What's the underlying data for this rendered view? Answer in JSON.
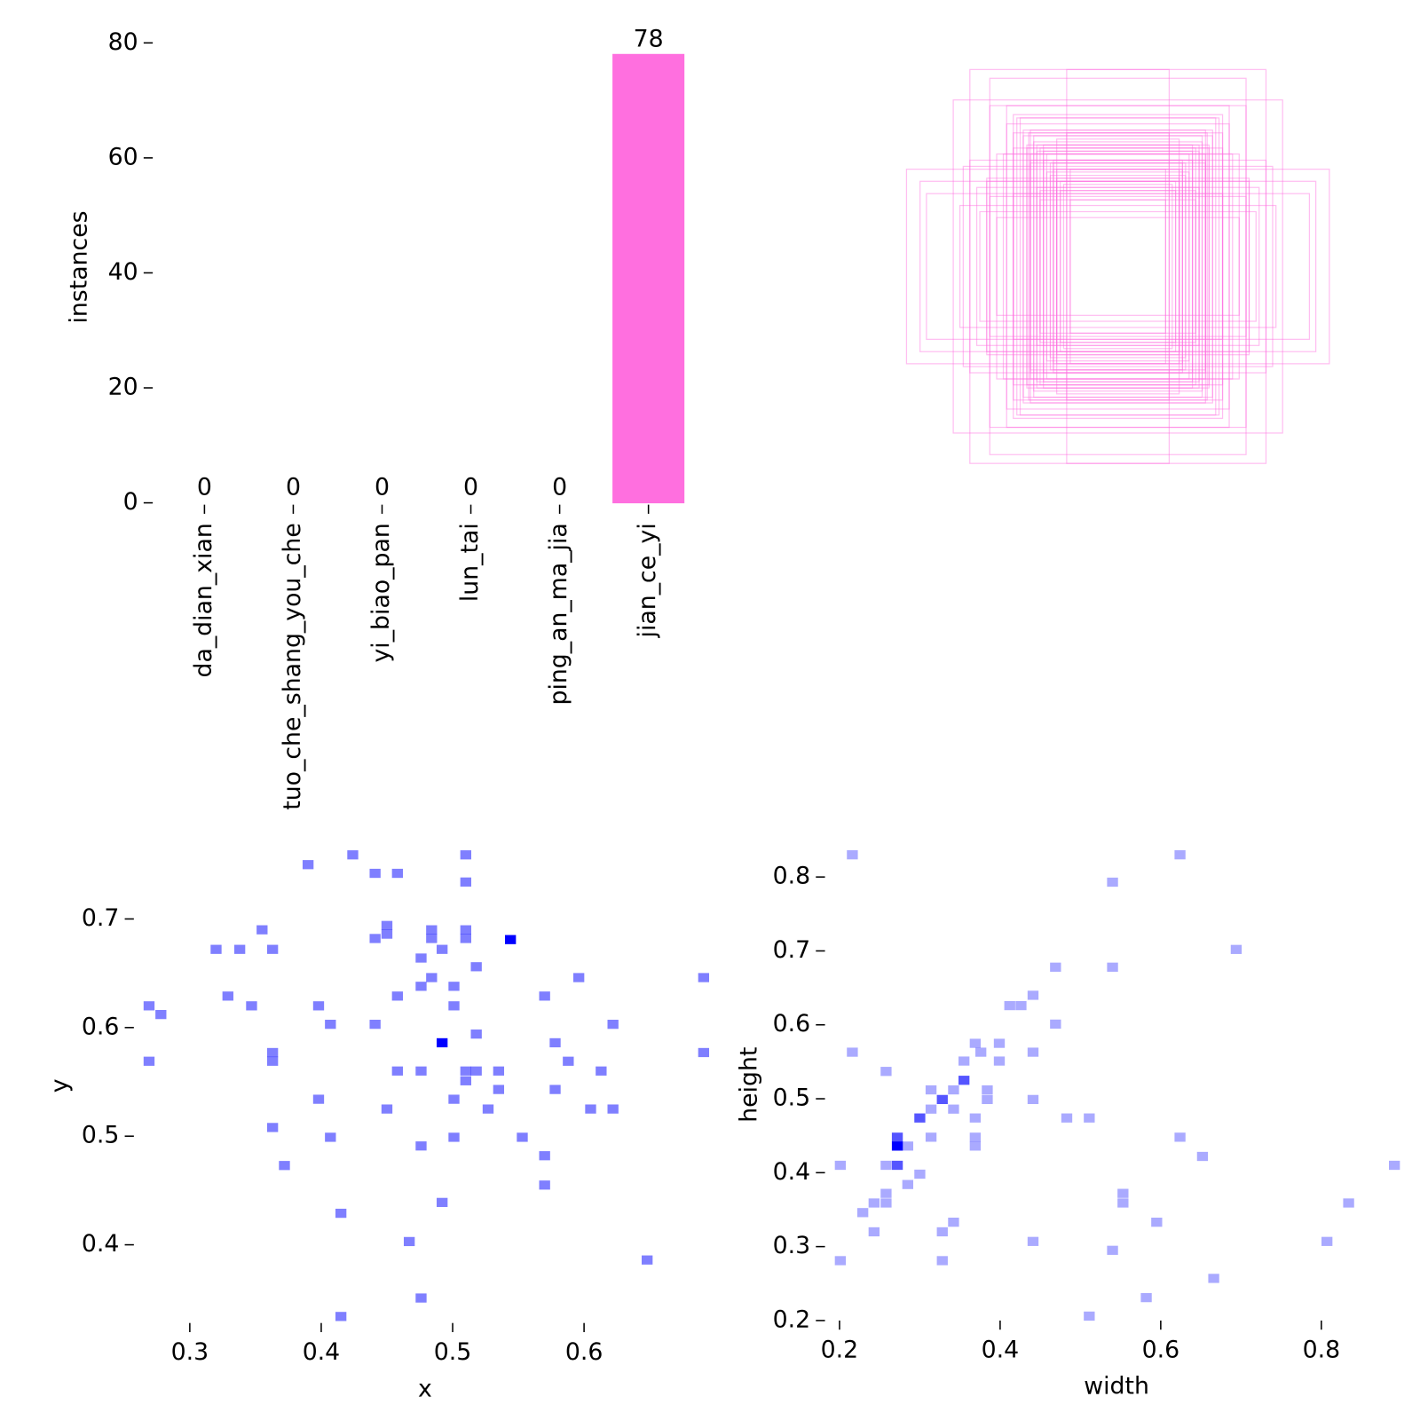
{
  "chart_data": [
    {
      "type": "bar",
      "ylabel": "instances",
      "categories": [
        "da_dian_xian",
        "tuo_che_shang_you_che",
        "yi_biao_pan",
        "lun_tai",
        "ping_an_ma_jia",
        "jian_ce_yi"
      ],
      "values": [
        0,
        0,
        0,
        0,
        0,
        78
      ],
      "colors": [
        "#3c3cd6",
        "#4fd4d4",
        "#eeeeee",
        "#3fd0c8",
        "#1c1c6c",
        "#ff6fdf"
      ],
      "ylim": [
        0,
        82
      ],
      "yticks": [
        0,
        20,
        40,
        60,
        80
      ]
    },
    {
      "type": "hist2d",
      "xlabel": "x",
      "ylabel": "y",
      "color": "#0000ff",
      "xlim": [
        0.263,
        0.695
      ],
      "ylim": [
        0.328,
        0.765
      ],
      "xticks": [
        0.3,
        0.4,
        0.5,
        0.6
      ],
      "yticks": [
        0.4,
        0.5,
        0.6,
        0.7
      ],
      "x": [
        0.39,
        0.424,
        0.51,
        0.441,
        0.458,
        0.51,
        0.45,
        0.45,
        0.441,
        0.355,
        0.32,
        0.338,
        0.363,
        0.484,
        0.484,
        0.492,
        0.51,
        0.51,
        0.544,
        0.476,
        0.518,
        0.484,
        0.476,
        0.501,
        0.596,
        0.691,
        0.329,
        0.347,
        0.269,
        0.278,
        0.398,
        0.458,
        0.501,
        0.57,
        0.407,
        0.441,
        0.622,
        0.518,
        0.492,
        0.578,
        0.691,
        0.363,
        0.363,
        0.269,
        0.588,
        0.458,
        0.476,
        0.51,
        0.51,
        0.535,
        0.613,
        0.535,
        0.578,
        0.398,
        0.501,
        0.45,
        0.527,
        0.605,
        0.622,
        0.363,
        0.407,
        0.501,
        0.553,
        0.476,
        0.57,
        0.372,
        0.57,
        0.492,
        0.415,
        0.467,
        0.648,
        0.476,
        0.415,
        0.518
      ],
      "values": [
        0.75,
        0.759,
        0.759,
        0.742,
        0.742,
        0.734,
        0.694,
        0.686,
        0.682,
        0.69,
        0.672,
        0.672,
        0.672,
        0.69,
        0.682,
        0.672,
        0.69,
        0.682,
        0.681,
        0.664,
        0.656,
        0.646,
        0.638,
        0.638,
        0.646,
        0.646,
        0.629,
        0.62,
        0.62,
        0.612,
        0.62,
        0.629,
        0.62,
        0.629,
        0.603,
        0.603,
        0.603,
        0.594,
        0.586,
        0.586,
        0.577,
        0.577,
        0.569,
        0.569,
        0.569,
        0.56,
        0.56,
        0.56,
        0.551,
        0.56,
        0.56,
        0.543,
        0.543,
        0.534,
        0.534,
        0.525,
        0.525,
        0.525,
        0.525,
        0.508,
        0.499,
        0.499,
        0.499,
        0.491,
        0.482,
        0.473,
        0.455,
        0.439,
        0.429,
        0.403,
        0.386,
        0.351,
        0.334,
        0.56
      ],
      "counts": [
        1,
        1,
        1,
        1,
        1,
        1,
        1,
        1,
        1,
        1,
        1,
        1,
        1,
        1,
        1,
        1,
        1,
        1,
        2,
        1,
        1,
        1,
        1,
        1,
        1,
        1,
        1,
        1,
        1,
        1,
        1,
        1,
        1,
        1,
        1,
        1,
        1,
        1,
        2,
        1,
        1,
        1,
        1,
        1,
        1,
        1,
        1,
        1,
        1,
        1,
        1,
        1,
        1,
        1,
        1,
        1,
        1,
        1,
        1,
        1,
        1,
        1,
        1,
        1,
        1,
        1,
        1,
        1,
        1,
        1,
        1,
        1,
        1,
        1
      ]
    },
    {
      "type": "hist2d",
      "xlabel": "width",
      "ylabel": "height",
      "color": "#0000ff",
      "box_color": "#ff6fdf",
      "xlim": [
        0.191,
        0.899
      ],
      "ylim": [
        0.2,
        0.838
      ],
      "xticks": [
        0.2,
        0.4,
        0.6,
        0.8
      ],
      "yticks": [
        0.2,
        0.3,
        0.4,
        0.5,
        0.6,
        0.7,
        0.8
      ],
      "x": [
        0.216,
        0.624,
        0.54,
        0.694,
        0.469,
        0.54,
        0.441,
        0.412,
        0.426,
        0.469,
        0.369,
        0.399,
        0.376,
        0.355,
        0.399,
        0.216,
        0.258,
        0.441,
        0.355,
        0.342,
        0.314,
        0.384,
        0.384,
        0.328,
        0.314,
        0.342,
        0.3,
        0.369,
        0.441,
        0.483,
        0.511,
        0.314,
        0.272,
        0.272,
        0.369,
        0.369,
        0.285,
        0.624,
        0.652,
        0.258,
        0.272,
        0.201,
        0.3,
        0.891,
        0.285,
        0.553,
        0.553,
        0.258,
        0.243,
        0.258,
        0.229,
        0.834,
        0.342,
        0.595,
        0.243,
        0.328,
        0.441,
        0.807,
        0.54,
        0.201,
        0.328,
        0.666,
        0.582,
        0.511
      ],
      "values": [
        0.83,
        0.83,
        0.793,
        0.702,
        0.678,
        0.678,
        0.64,
        0.626,
        0.626,
        0.601,
        0.575,
        0.575,
        0.563,
        0.551,
        0.551,
        0.563,
        0.537,
        0.563,
        0.525,
        0.512,
        0.512,
        0.512,
        0.499,
        0.499,
        0.486,
        0.486,
        0.474,
        0.474,
        0.499,
        0.474,
        0.474,
        0.448,
        0.448,
        0.436,
        0.448,
        0.436,
        0.436,
        0.448,
        0.422,
        0.41,
        0.41,
        0.41,
        0.398,
        0.41,
        0.384,
        0.372,
        0.359,
        0.372,
        0.359,
        0.359,
        0.346,
        0.359,
        0.333,
        0.333,
        0.32,
        0.32,
        0.307,
        0.307,
        0.295,
        0.281,
        0.281,
        0.257,
        0.231,
        0.206
      ],
      "counts": [
        1,
        1,
        1,
        1,
        1,
        1,
        1,
        1,
        1,
        1,
        1,
        1,
        1,
        1,
        1,
        1,
        1,
        1,
        2,
        1,
        1,
        1,
        1,
        2,
        1,
        1,
        2,
        1,
        1,
        1,
        1,
        1,
        2,
        3,
        1,
        1,
        1,
        1,
        1,
        1,
        2,
        1,
        1,
        1,
        1,
        1,
        1,
        1,
        1,
        1,
        1,
        1,
        1,
        1,
        1,
        1,
        1,
        1,
        1,
        1,
        1,
        1,
        1,
        1
      ]
    }
  ]
}
